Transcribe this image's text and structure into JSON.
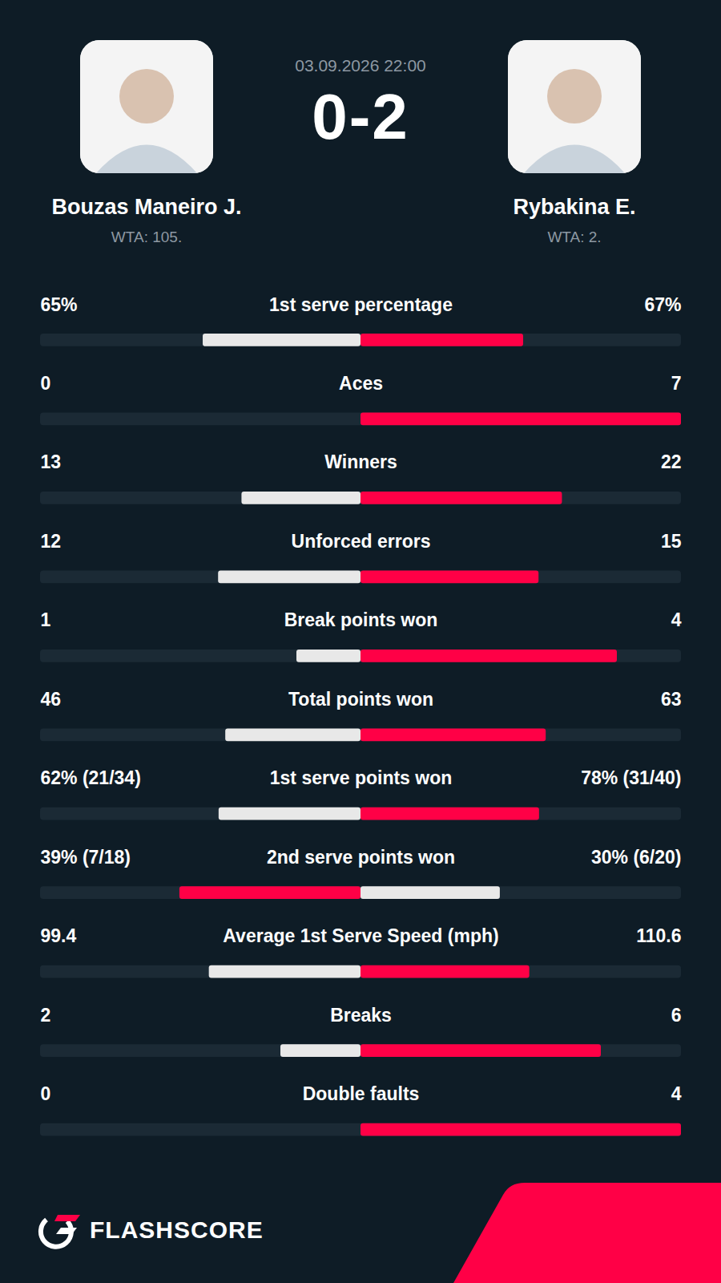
{
  "header": {
    "date": "03.09.2026 22:00",
    "score": "0-2",
    "ranks": [
      "WTA: 105.",
      "WTA: 2."
    ]
  },
  "chart_data": {
    "type": "bar",
    "orientation": "horizontal",
    "categories": [
      "1st serve percentage",
      "Aces",
      "Winners",
      "Unforced errors",
      "Break points won",
      "Total points won",
      "1st serve points won",
      "2nd serve points won",
      "Average 1st Serve Speed (mph)",
      "Breaks",
      "Double faults"
    ],
    "series": [
      {
        "name": "Bouzas Maneiro J.",
        "values": [
          65,
          0,
          13,
          12,
          1,
          46,
          62,
          39,
          99.4,
          2,
          0
        ],
        "value_labels": [
          "65%",
          "0",
          "13",
          "12",
          "1",
          "46",
          "62% (21/34)",
          "39% (7/18)",
          "99.4",
          "2",
          "0"
        ],
        "colors": [
          "#e8e8e8",
          "#e8e8e8",
          "#e8e8e8",
          "#e8e8e8",
          "#e8e8e8",
          "#e8e8e8",
          "#e8e8e8",
          "#ff0046",
          "#e8e8e8",
          "#e8e8e8",
          "#e8e8e8"
        ]
      },
      {
        "name": "Rybakina E.",
        "values": [
          67,
          7,
          22,
          15,
          4,
          63,
          78,
          30,
          110.6,
          6,
          4
        ],
        "value_labels": [
          "67%",
          "7",
          "22",
          "15",
          "4",
          "63",
          "78% (31/40)",
          "30% (6/20)",
          "110.6",
          "6",
          "4"
        ],
        "colors": [
          "#ff0046",
          "#ff0046",
          "#ff0046",
          "#ff0046",
          "#ff0046",
          "#ff0046",
          "#ff0046",
          "#e8e8e8",
          "#ff0046",
          "#ff0046",
          "#ff0046"
        ]
      }
    ],
    "data_labels": true,
    "tick_labels": false
  },
  "footer": {
    "brand": "FLASHSCORE"
  }
}
